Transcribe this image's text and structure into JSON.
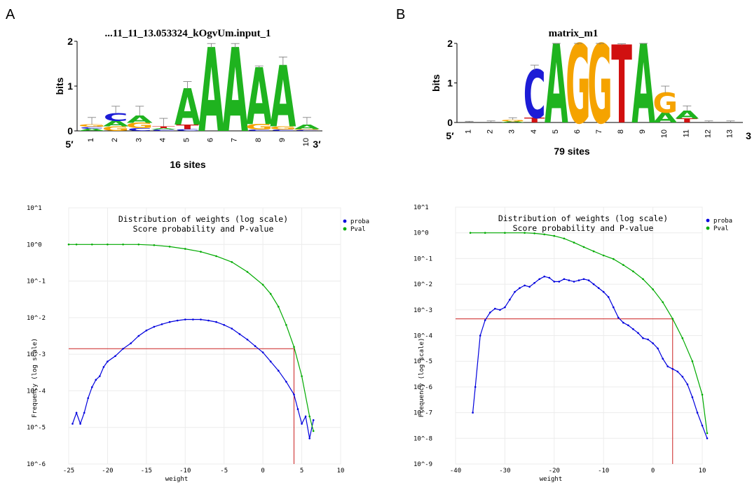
{
  "panel_labels": [
    "A",
    "B"
  ],
  "chart_data": [
    {
      "type": "sequence-logo",
      "title": "...11_11_13.053324_kOgvUm.input_1",
      "ylabel": "bits",
      "ylim": [
        0,
        2
      ],
      "yticks": [
        "0",
        "1",
        "2"
      ],
      "positions": [
        "1",
        "2",
        "3",
        "4",
        "5",
        "6",
        "7",
        "8",
        "9",
        "10"
      ],
      "end_labels": [
        "5′",
        "3′"
      ],
      "sites_label": "16 sites",
      "columns": [
        {
          "pos": "1",
          "letters": [
            {
              "l": "A",
              "h": 0.05
            },
            {
              "l": "C",
              "h": 0.04
            },
            {
              "l": "G",
              "h": 0.05
            }
          ],
          "err": 0.3
        },
        {
          "pos": "2",
          "letters": [
            {
              "l": "G",
              "h": 0.1
            },
            {
              "l": "A",
              "h": 0.12
            },
            {
              "l": "C",
              "h": 0.18
            }
          ],
          "err": 0.55
        },
        {
          "pos": "3",
          "letters": [
            {
              "l": "C",
              "h": 0.06
            },
            {
              "l": "G",
              "h": 0.12
            },
            {
              "l": "A",
              "h": 0.16
            }
          ],
          "err": 0.55
        },
        {
          "pos": "4",
          "letters": [
            {
              "l": "C",
              "h": 0.03
            },
            {
              "l": "A",
              "h": 0.03
            },
            {
              "l": "T",
              "h": 0.04
            }
          ],
          "err": 0.28
        },
        {
          "pos": "5",
          "letters": [
            {
              "l": "C",
              "h": 0.04
            },
            {
              "l": "T",
              "h": 0.1
            },
            {
              "l": "A",
              "h": 0.8
            }
          ],
          "err": 1.1
        },
        {
          "pos": "6",
          "letters": [
            {
              "l": "A",
              "h": 1.85
            }
          ],
          "err": 1.95
        },
        {
          "pos": "7",
          "letters": [
            {
              "l": "A",
              "h": 1.85
            }
          ],
          "err": 1.95
        },
        {
          "pos": "8",
          "letters": [
            {
              "l": "C",
              "h": 0.03
            },
            {
              "l": "G",
              "h": 0.12
            },
            {
              "l": "A",
              "h": 1.25
            }
          ],
          "err": 1.45
        },
        {
          "pos": "9",
          "letters": [
            {
              "l": "C",
              "h": 0.03
            },
            {
              "l": "G",
              "h": 0.07
            },
            {
              "l": "A",
              "h": 1.35
            }
          ],
          "err": 1.65
        },
        {
          "pos": "10",
          "letters": [
            {
              "l": "C",
              "h": 0.02
            },
            {
              "l": "G",
              "h": 0.02
            },
            {
              "l": "A",
              "h": 0.1
            }
          ],
          "err": 0.3
        }
      ]
    },
    {
      "type": "sequence-logo",
      "title": "matrix_m1",
      "ylabel": "bits",
      "ylim": [
        0,
        2
      ],
      "yticks": [
        "0",
        "1",
        "2"
      ],
      "positions": [
        "1",
        "2",
        "3",
        "4",
        "5",
        "6",
        "7",
        "8",
        "9",
        "10",
        "11",
        "12",
        "13"
      ],
      "end_labels": [
        "5′",
        "3"
      ],
      "sites_label": "79 sites",
      "columns": [
        {
          "pos": "1",
          "letters": [],
          "err": 0.03
        },
        {
          "pos": "2",
          "letters": [],
          "err": 0.04
        },
        {
          "pos": "3",
          "letters": [
            {
              "l": "A",
              "h": 0.03
            },
            {
              "l": "G",
              "h": 0.04
            }
          ],
          "err": 0.12
        },
        {
          "pos": "4",
          "letters": [
            {
              "l": "T",
              "h": 0.12
            },
            {
              "l": "C",
              "h": 1.2
            }
          ],
          "err": 1.45
        },
        {
          "pos": "5",
          "letters": [
            {
              "l": "A",
              "h": 1.97
            }
          ],
          "err": 2.0
        },
        {
          "pos": "6",
          "letters": [
            {
              "l": "G",
              "h": 1.97
            }
          ],
          "err": 2.0
        },
        {
          "pos": "7",
          "letters": [
            {
              "l": "G",
              "h": 1.97
            }
          ],
          "err": 2.0
        },
        {
          "pos": "8",
          "letters": [
            {
              "l": "T",
              "h": 1.95
            }
          ],
          "err": 1.99
        },
        {
          "pos": "9",
          "letters": [
            {
              "l": "A",
              "h": 1.97
            }
          ],
          "err": 2.0
        },
        {
          "pos": "10",
          "letters": [
            {
              "l": "A",
              "h": 0.25
            },
            {
              "l": "G",
              "h": 0.5
            }
          ],
          "err": 0.92
        },
        {
          "pos": "11",
          "letters": [
            {
              "l": "T",
              "h": 0.1
            },
            {
              "l": "A",
              "h": 0.2
            }
          ],
          "err": 0.42
        },
        {
          "pos": "12",
          "letters": [],
          "err": 0.04
        },
        {
          "pos": "13",
          "letters": [],
          "err": 0.04
        }
      ]
    },
    {
      "type": "line",
      "title": "Distribution of weights  (log scale)",
      "subtitle": "Score probability and P-value",
      "xlabel": "weight",
      "ylabel": "Frequency (log scale)",
      "yscale": "log",
      "xlim": [
        -25,
        10
      ],
      "ylim": [
        -6,
        1
      ],
      "xticks": [
        "-25",
        "-20",
        "-15",
        "-10",
        "-5",
        "0",
        "5",
        "10"
      ],
      "yticks": [
        "10^1",
        "10^0",
        "10^-1",
        "10^-2",
        "10^-3",
        "10^-4",
        "10^-5",
        "10^-6"
      ],
      "legend": "top-right",
      "threshold": {
        "x": 4,
        "y": -2.85
      },
      "series": [
        {
          "name": "proba",
          "color": "#0000dd",
          "x": [
            -24.5,
            -24,
            -23.5,
            -23,
            -22.5,
            -22,
            -21.5,
            -21,
            -20.5,
            -20,
            -19,
            -18,
            -17,
            -16,
            -15,
            -14,
            -13,
            -12,
            -11,
            -10,
            -9,
            -8,
            -7,
            -6,
            -5,
            -4,
            -3,
            -2,
            -1,
            0,
            1,
            2,
            3,
            4,
            4.5,
            5,
            5.5,
            6,
            6.5
          ],
          "y": [
            -4.9,
            -4.6,
            -4.9,
            -4.6,
            -4.2,
            -3.9,
            -3.7,
            -3.6,
            -3.35,
            -3.2,
            -3.05,
            -2.85,
            -2.7,
            -2.5,
            -2.35,
            -2.25,
            -2.18,
            -2.12,
            -2.08,
            -2.05,
            -2.05,
            -2.05,
            -2.08,
            -2.12,
            -2.2,
            -2.3,
            -2.45,
            -2.6,
            -2.78,
            -2.95,
            -3.2,
            -3.45,
            -3.75,
            -4.1,
            -4.5,
            -4.9,
            -4.7,
            -5.3,
            -4.8
          ]
        },
        {
          "name": "Pval",
          "color": "#00aa00",
          "x": [
            -25,
            -24,
            -22,
            -20,
            -18,
            -16,
            -14,
            -12,
            -10,
            -8,
            -6,
            -4,
            -2,
            0,
            1,
            2,
            3,
            4,
            5,
            6,
            6.5
          ],
          "y": [
            0,
            0,
            0,
            0,
            0,
            0,
            -0.02,
            -0.06,
            -0.12,
            -0.2,
            -0.32,
            -0.48,
            -0.75,
            -1.1,
            -1.35,
            -1.7,
            -2.2,
            -2.8,
            -3.6,
            -4.7,
            -5.1
          ]
        }
      ]
    },
    {
      "type": "line",
      "title": "Distribution of weights  (log scale)",
      "subtitle": "Score probability and P-value",
      "xlabel": "weight",
      "ylabel": "Frequency (log scale)",
      "yscale": "log",
      "xlim": [
        -40,
        10
      ],
      "ylim": [
        -9,
        1
      ],
      "xticks": [
        "-40",
        "-30",
        "-20",
        "-10",
        "0",
        "10"
      ],
      "yticks": [
        "10^1",
        "10^0",
        "10^-1",
        "10^-2",
        "10^-3",
        "10^-4",
        "10^-5",
        "10^-6",
        "10^-7",
        "10^-8",
        "10^-9"
      ],
      "legend": "top-right",
      "threshold": {
        "x": 4,
        "y": -3.35
      },
      "series": [
        {
          "name": "proba",
          "color": "#0000dd",
          "x": [
            -36.5,
            -36,
            -35,
            -34,
            -33,
            -32,
            -31,
            -30,
            -29,
            -28,
            -27,
            -26,
            -25,
            -24,
            -23,
            -22,
            -21,
            -20,
            -19,
            -18,
            -17,
            -16,
            -15,
            -14,
            -13,
            -12,
            -11,
            -10,
            -9,
            -8,
            -7,
            -6,
            -5,
            -4,
            -3,
            -2,
            -1,
            0,
            1,
            2,
            3,
            4,
            5,
            6,
            7,
            8,
            9,
            10,
            11
          ],
          "y": [
            -7,
            -6,
            -4,
            -3.4,
            -3.1,
            -2.95,
            -3,
            -2.9,
            -2.6,
            -2.3,
            -2.15,
            -2.05,
            -2.1,
            -1.95,
            -1.8,
            -1.7,
            -1.75,
            -1.9,
            -1.9,
            -1.8,
            -1.85,
            -1.9,
            -1.85,
            -1.8,
            -1.85,
            -2.0,
            -2.15,
            -2.3,
            -2.5,
            -2.9,
            -3.3,
            -3.5,
            -3.6,
            -3.75,
            -3.9,
            -4.1,
            -4.15,
            -4.3,
            -4.5,
            -4.9,
            -5.2,
            -5.3,
            -5.4,
            -5.6,
            -5.9,
            -6.4,
            -7.0,
            -7.5,
            -8.0
          ]
        },
        {
          "name": "Pval",
          "color": "#00aa00",
          "x": [
            -37,
            -34,
            -30,
            -26,
            -24,
            -22,
            -20,
            -18,
            -16,
            -14,
            -12,
            -10,
            -8,
            -6,
            -4,
            -2,
            0,
            2,
            4,
            6,
            8,
            10,
            11
          ],
          "y": [
            0,
            0,
            0,
            0,
            -0.02,
            -0.06,
            -0.12,
            -0.22,
            -0.38,
            -0.55,
            -0.72,
            -0.88,
            -1.02,
            -1.25,
            -1.5,
            -1.8,
            -2.2,
            -2.7,
            -3.35,
            -4.1,
            -5.0,
            -6.3,
            -7.8
          ]
        }
      ]
    }
  ]
}
